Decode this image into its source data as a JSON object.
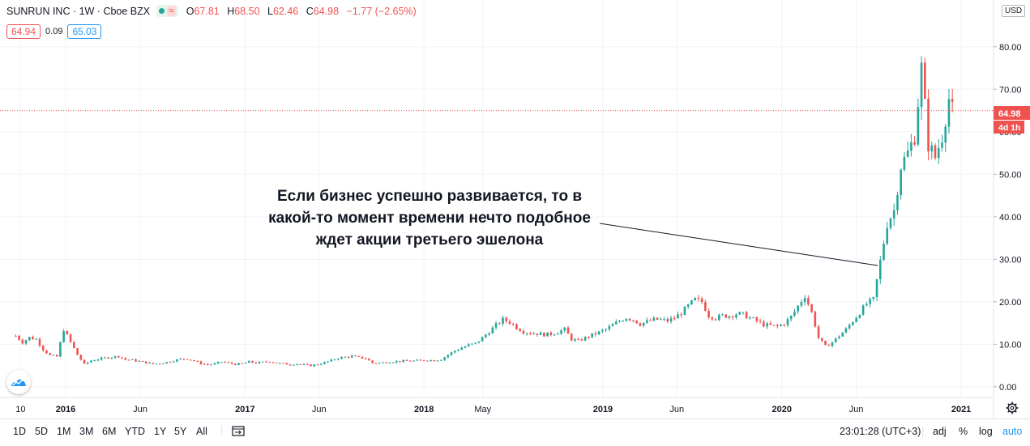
{
  "header": {
    "symbol": "SUNRUN INC · 1W · Cboe BZX",
    "open_label": "O",
    "open": "67.81",
    "high_label": "H",
    "high": "68.50",
    "low_label": "L",
    "low": "62.46",
    "close_label": "C",
    "close": "64.98",
    "change": "−1.77 (−2.65%)",
    "bid": "64.94",
    "spread": "0.09",
    "ask": "65.03",
    "currency": "USD",
    "wave_icon": "≈"
  },
  "annotation": {
    "line1": "Если бизнес успешно развивается, то в",
    "line2": "какой-то момент времени нечто подобное",
    "line3": "ждет акции третьего эшелона"
  },
  "price_axis": {
    "last_price": "64.98",
    "countdown": "4d 1h"
  },
  "toolbar": {
    "timeframes": [
      "1D",
      "5D",
      "1M",
      "3M",
      "6M",
      "YTD",
      "1Y",
      "5Y",
      "All"
    ],
    "clock": "23:01:28 (UTC+3)",
    "adj": "adj",
    "percent": "%",
    "log": "log",
    "auto": "auto"
  },
  "colors": {
    "up": "#26a69a",
    "down": "#ef5350",
    "grid": "#f0f3fa",
    "axis_text": "#131722"
  },
  "chart_data": {
    "type": "candlestick",
    "title": "SUNRUN INC · 1W · Cboe BZX",
    "y_ticks": [
      0,
      10,
      20,
      30,
      40,
      50,
      60,
      70,
      80
    ],
    "y_tick_labels": [
      "0.00",
      "10.00",
      "20.00",
      "30.00",
      "40.00",
      "50.00",
      "60.00",
      "70.00",
      "80.00"
    ],
    "ylim": [
      -2.5,
      91
    ],
    "x_ticks": [
      {
        "date": "2015-10-01",
        "label": "10"
      },
      {
        "date": "2016-01-01",
        "label": "2016"
      },
      {
        "date": "2016-06-01",
        "label": "Jun"
      },
      {
        "date": "2017-01-01",
        "label": "2017"
      },
      {
        "date": "2017-06-01",
        "label": "Jun"
      },
      {
        "date": "2018-01-01",
        "label": "2018"
      },
      {
        "date": "2018-05-01",
        "label": "May"
      },
      {
        "date": "2019-01-01",
        "label": "2019"
      },
      {
        "date": "2019-06-01",
        "label": "Jun"
      },
      {
        "date": "2020-01-01",
        "label": "2020"
      },
      {
        "date": "2020-06-01",
        "label": "Jun"
      },
      {
        "date": "2021-01-01",
        "label": "2021"
      }
    ],
    "xlim": [
      "2015-08-20",
      "2021-03-08"
    ],
    "close_series": [
      [
        "2015-09-21",
        12.0
      ],
      [
        "2015-10-05",
        10.5
      ],
      [
        "2015-10-19",
        11.6
      ],
      [
        "2015-11-02",
        11.2
      ],
      [
        "2015-11-16",
        8.8
      ],
      [
        "2015-11-30",
        7.4
      ],
      [
        "2015-12-14",
        7.1
      ],
      [
        "2015-12-28",
        13.5
      ],
      [
        "2016-01-11",
        10.5
      ],
      [
        "2016-01-25",
        7.5
      ],
      [
        "2016-02-08",
        5.3
      ],
      [
        "2016-02-22",
        6.2
      ],
      [
        "2016-03-07",
        6.5
      ],
      [
        "2016-03-21",
        6.8
      ],
      [
        "2016-04-04",
        7.0
      ],
      [
        "2016-04-18",
        7.2
      ],
      [
        "2016-05-02",
        6.4
      ],
      [
        "2016-05-16",
        6.3
      ],
      [
        "2016-05-30",
        6.0
      ],
      [
        "2016-06-13",
        5.7
      ],
      [
        "2016-06-27",
        5.4
      ],
      [
        "2016-07-11",
        5.5
      ],
      [
        "2016-07-25",
        5.8
      ],
      [
        "2016-08-08",
        6.2
      ],
      [
        "2016-08-22",
        6.5
      ],
      [
        "2016-09-05",
        6.6
      ],
      [
        "2016-09-19",
        6.1
      ],
      [
        "2016-10-03",
        5.5
      ],
      [
        "2016-10-17",
        5.2
      ],
      [
        "2016-10-31",
        5.4
      ],
      [
        "2016-11-14",
        5.9
      ],
      [
        "2016-11-28",
        5.6
      ],
      [
        "2016-12-12",
        5.3
      ],
      [
        "2016-12-26",
        5.4
      ],
      [
        "2017-01-09",
        5.9
      ],
      [
        "2017-01-23",
        5.6
      ],
      [
        "2017-02-06",
        5.8
      ],
      [
        "2017-02-20",
        6.0
      ],
      [
        "2017-03-06",
        5.6
      ],
      [
        "2017-03-20",
        5.4
      ],
      [
        "2017-04-03",
        5.3
      ],
      [
        "2017-04-17",
        5.4
      ],
      [
        "2017-05-01",
        5.2
      ],
      [
        "2017-05-15",
        5.0
      ],
      [
        "2017-05-29",
        5.3
      ],
      [
        "2017-06-12",
        5.7
      ],
      [
        "2017-06-26",
        6.2
      ],
      [
        "2017-07-10",
        6.8
      ],
      [
        "2017-07-24",
        7.0
      ],
      [
        "2017-08-07",
        7.2
      ],
      [
        "2017-08-21",
        6.9
      ],
      [
        "2017-09-04",
        6.7
      ],
      [
        "2017-09-18",
        5.6
      ],
      [
        "2017-10-02",
        5.6
      ],
      [
        "2017-10-16",
        5.8
      ],
      [
        "2017-10-30",
        5.9
      ],
      [
        "2017-11-13",
        6.0
      ],
      [
        "2017-11-27",
        6.1
      ],
      [
        "2017-12-11",
        6.1
      ],
      [
        "2017-12-25",
        6.2
      ],
      [
        "2018-01-08",
        6.3
      ],
      [
        "2018-01-22",
        6.2
      ],
      [
        "2018-02-05",
        6.5
      ],
      [
        "2018-02-19",
        7.5
      ],
      [
        "2018-03-05",
        8.5
      ],
      [
        "2018-03-19",
        9.2
      ],
      [
        "2018-04-02",
        9.8
      ],
      [
        "2018-04-16",
        10.2
      ],
      [
        "2018-04-30",
        11.5
      ],
      [
        "2018-05-14",
        13.0
      ],
      [
        "2018-05-28",
        14.5
      ],
      [
        "2018-06-11",
        15.8
      ],
      [
        "2018-06-25",
        15.2
      ],
      [
        "2018-07-09",
        14.0
      ],
      [
        "2018-07-23",
        13.0
      ],
      [
        "2018-08-06",
        12.7
      ],
      [
        "2018-08-20",
        12.5
      ],
      [
        "2018-09-03",
        12.3
      ],
      [
        "2018-09-17",
        12.4
      ],
      [
        "2018-10-01",
        12.9
      ],
      [
        "2018-10-15",
        13.5
      ],
      [
        "2018-10-29",
        11.2
      ],
      [
        "2018-11-12",
        10.8
      ],
      [
        "2018-11-26",
        11.5
      ],
      [
        "2018-12-10",
        12.2
      ],
      [
        "2018-12-24",
        12.8
      ],
      [
        "2019-01-07",
        13.5
      ],
      [
        "2019-01-21",
        14.5
      ],
      [
        "2019-02-04",
        15.5
      ],
      [
        "2019-02-18",
        16.3
      ],
      [
        "2019-03-04",
        15.8
      ],
      [
        "2019-03-18",
        14.8
      ],
      [
        "2019-04-01",
        15.3
      ],
      [
        "2019-04-15",
        15.8
      ],
      [
        "2019-04-29",
        15.8
      ],
      [
        "2019-05-13",
        15.5
      ],
      [
        "2019-05-27",
        16.2
      ],
      [
        "2019-06-10",
        17.4
      ],
      [
        "2019-06-24",
        19.0
      ],
      [
        "2019-07-08",
        20.5
      ],
      [
        "2019-07-22",
        20.0
      ],
      [
        "2019-08-05",
        16.8
      ],
      [
        "2019-08-19",
        16.2
      ],
      [
        "2019-09-02",
        16.7
      ],
      [
        "2019-09-16",
        16.7
      ],
      [
        "2019-09-30",
        17.2
      ],
      [
        "2019-10-14",
        17.0
      ],
      [
        "2019-10-28",
        16.2
      ],
      [
        "2019-11-11",
        15.5
      ],
      [
        "2019-11-25",
        14.6
      ],
      [
        "2019-12-09",
        14.4
      ],
      [
        "2019-12-23",
        14.2
      ],
      [
        "2020-01-06",
        14.9
      ],
      [
        "2020-01-20",
        16.5
      ],
      [
        "2020-02-03",
        19.0
      ],
      [
        "2020-02-17",
        21.5
      ],
      [
        "2020-03-02",
        17.5
      ],
      [
        "2020-03-16",
        11.5
      ],
      [
        "2020-03-30",
        9.5
      ],
      [
        "2020-04-13",
        10.5
      ],
      [
        "2020-04-27",
        12.0
      ],
      [
        "2020-05-11",
        13.5
      ],
      [
        "2020-05-25",
        15.5
      ],
      [
        "2020-06-08",
        17.5
      ],
      [
        "2020-06-22",
        19.5
      ],
      [
        "2020-07-06",
        20.5
      ],
      [
        "2020-07-20",
        29.5
      ],
      [
        "2020-08-03",
        38.5
      ],
      [
        "2020-08-17",
        41.5
      ],
      [
        "2020-08-31",
        52.0
      ],
      [
        "2020-09-14",
        55.0
      ],
      [
        "2020-09-28",
        59.0
      ],
      [
        "2020-10-12",
        75.0
      ],
      [
        "2020-10-26",
        57.0
      ],
      [
        "2020-11-09",
        54.0
      ],
      [
        "2020-11-23",
        59.0
      ],
      [
        "2020-12-07",
        67.8
      ],
      [
        "2020-12-14",
        64.98
      ]
    ]
  }
}
